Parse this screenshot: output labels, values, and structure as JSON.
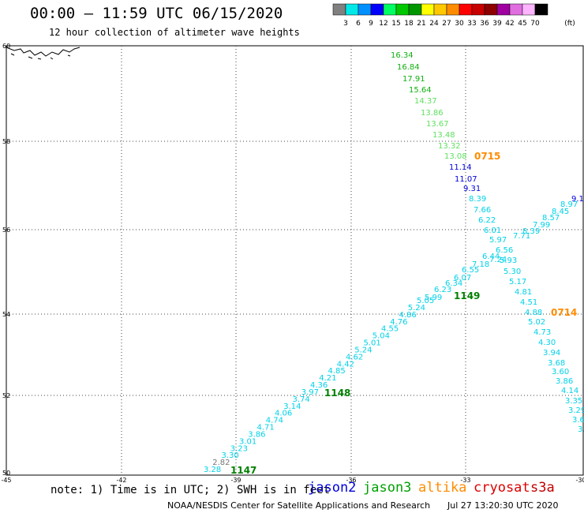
{
  "header": {
    "title": "00:00 – 11:59 UTC 06/15/2020",
    "subtitle": "12 hour collection of altimeter wave heights"
  },
  "colorbar": {
    "unit": "(ft)",
    "bins": [
      {
        "label": "3",
        "color": "#808080"
      },
      {
        "label": "6",
        "color": "#00e8e8"
      },
      {
        "label": "9",
        "color": "#0090ff"
      },
      {
        "label": "12",
        "color": "#0000ff"
      },
      {
        "label": "15",
        "color": "#00ff60"
      },
      {
        "label": "18",
        "color": "#00c800"
      },
      {
        "label": "21",
        "color": "#009600"
      },
      {
        "label": "24",
        "color": "#ffff00"
      },
      {
        "label": "27",
        "color": "#ffc800"
      },
      {
        "label": "30",
        "color": "#ff8c00"
      },
      {
        "label": "33",
        "color": "#ff0000"
      },
      {
        "label": "36",
        "color": "#c80000"
      },
      {
        "label": "39",
        "color": "#8c0000"
      },
      {
        "label": "42",
        "color": "#a000a0"
      },
      {
        "label": "45",
        "color": "#e06ee0"
      },
      {
        "label": "70",
        "color": "#ffb4ff"
      },
      {
        "label": "",
        "color": "#000000"
      }
    ]
  },
  "axes": {
    "lat_ticks": [
      "60",
      "58",
      "56",
      "54",
      "52",
      "50"
    ],
    "lon_ticks": [
      "-45",
      "-42",
      "-39",
      "-36",
      "-33",
      "-30"
    ]
  },
  "passes": [
    {
      "name": "0715",
      "color": "#ff8c00"
    },
    {
      "name": "0714",
      "color": "#ff8c00"
    },
    {
      "name": "1149",
      "color": "#008000"
    },
    {
      "name": "1148",
      "color": "#008000"
    },
    {
      "name": "1147",
      "color": "#008000"
    }
  ],
  "tracks": {
    "pass_0715": [
      "16.34",
      "16.84",
      "17.91",
      "15.64",
      "14.37",
      "13.86",
      "13.67",
      "13.48",
      "13.32",
      "13.08",
      "11.14",
      "11.07",
      "9.31",
      "8.39",
      "7.66",
      "6.22",
      "6.01",
      "5.97",
      "6.56",
      "7.24",
      "6.44",
      "7.18",
      "6.55",
      "6.07",
      "6.34",
      "6.23",
      "5.99"
    ],
    "pass_0714": [
      "5.93",
      "5.30",
      "5.17",
      "4.81",
      "4.51",
      "4.88",
      "5.02",
      "4.73",
      "4.30",
      "3.94",
      "3.68",
      "3.60",
      "3.86",
      "4.14",
      "3.35",
      "3.29",
      "3.6",
      "3."
    ],
    "pass_1149": [
      "9.1",
      "8.97",
      "8.45",
      "8.57",
      "7.99",
      "7.71",
      "8.39"
    ],
    "pass_1148": [
      "5.05",
      "5.24",
      "4.86",
      "4.76",
      "4.55",
      "5.04",
      "5.01",
      "5.24",
      "4.62",
      "4.42",
      "4.85",
      "4.21",
      "4.36",
      "3.97",
      "3.74",
      "3.14",
      "4.06",
      "4.74",
      "4.71",
      "3.86",
      "3.01",
      "3.23",
      "3.30",
      "2.82",
      "3.28"
    ]
  },
  "footer": {
    "note": "note: 1) Time is in UTC; 2) SWH is in feet",
    "satellites": [
      {
        "name": "jason2",
        "color": "#0000dd"
      },
      {
        "name": "jason3",
        "color": "#00a000"
      },
      {
        "name": "altika",
        "color": "#ff8c00"
      },
      {
        "name": "cryosat",
        "color": "#dd0000"
      },
      {
        "name": "s3a",
        "color": "#c00000"
      }
    ],
    "credit": "NOAA/NESDIS Center for Satellite Applications and Research",
    "timestamp": "Jul 27 13:20:30 UTC 2020"
  }
}
